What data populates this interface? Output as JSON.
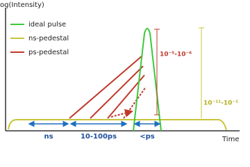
{
  "axes": {
    "y_label": "og(Intensity)",
    "x_label": "Time"
  },
  "legend": [
    {
      "label": "ideal pulse"
    },
    {
      "label": "ns-pedestal"
    },
    {
      "label": "ps-pedestal"
    }
  ],
  "annotations": {
    "ps_contrast": "10⁻⁵-10⁻⁶",
    "ns_contrast": "10⁻¹¹-10⁻¹"
  },
  "spans": [
    {
      "label": "ns"
    },
    {
      "label": "10-100ps"
    },
    {
      "label": "<ps"
    }
  ]
}
